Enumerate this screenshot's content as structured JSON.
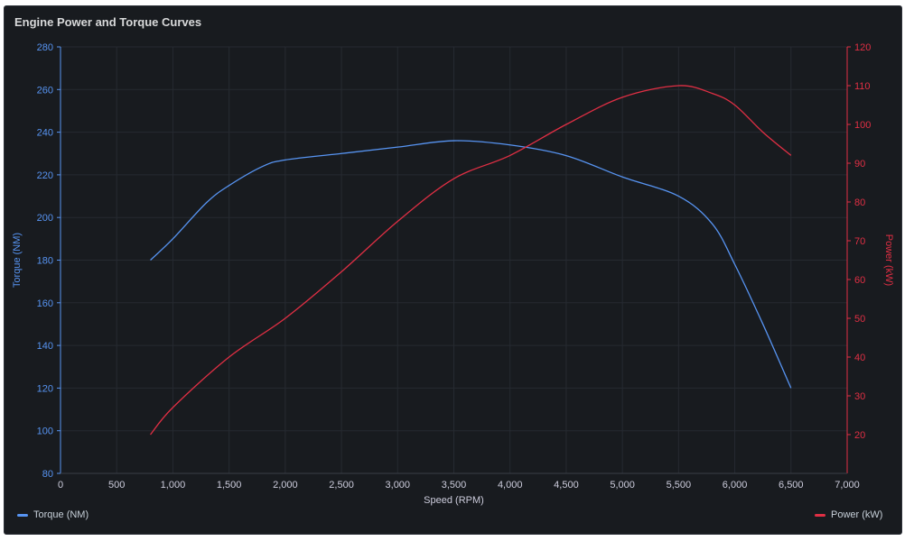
{
  "panel": {
    "title": "Engine Power and Torque Curves"
  },
  "legend": {
    "torque_label": "Torque (NM)",
    "power_label": "Power (kW)"
  },
  "colors": {
    "torque": "#5794f2",
    "power": "#e02f44",
    "grid": "#262a31",
    "tick_text": "#ccccdc",
    "background": "#181b1f"
  },
  "chart_data": {
    "type": "line",
    "xlabel": "Speed (RPM)",
    "xlim": [
      0,
      7000
    ],
    "xticks": [
      "0",
      "500",
      "1,000",
      "1,500",
      "2,000",
      "2,500",
      "3,000",
      "3,500",
      "4,000",
      "4,500",
      "5,000",
      "5,500",
      "6,000",
      "6,500",
      "7,000"
    ],
    "y_left": {
      "label": "Torque (NM)",
      "lim": [
        80,
        280
      ],
      "ticks": [
        "80",
        "100",
        "120",
        "140",
        "160",
        "180",
        "200",
        "220",
        "240",
        "260",
        "280"
      ]
    },
    "y_right": {
      "label": "Power (kW)",
      "lim": [
        10,
        120
      ],
      "ticks": [
        "20",
        "30",
        "40",
        "50",
        "60",
        "70",
        "80",
        "90",
        "100",
        "110",
        "120"
      ]
    },
    "grid": true,
    "legend_position": "bottom",
    "series": [
      {
        "name": "Torque (NM)",
        "axis": "left",
        "x": [
          800,
          1000,
          1300,
          1500,
          1800,
          2000,
          2500,
          3000,
          3500,
          4000,
          4500,
          5000,
          5500,
          5800,
          6000,
          6250,
          6500
        ],
        "y": [
          180,
          190,
          207,
          215,
          224,
          227,
          230,
          233,
          236,
          234,
          229,
          219,
          210,
          197,
          178,
          150,
          120
        ]
      },
      {
        "name": "Power (kW)",
        "axis": "right",
        "x": [
          800,
          1000,
          1500,
          2000,
          2500,
          3000,
          3500,
          4000,
          4500,
          5000,
          5500,
          5800,
          6000,
          6250,
          6500
        ],
        "y": [
          20,
          27,
          40,
          50,
          62,
          75,
          86,
          92,
          100,
          107,
          110,
          108,
          105,
          98,
          92
        ]
      }
    ]
  }
}
